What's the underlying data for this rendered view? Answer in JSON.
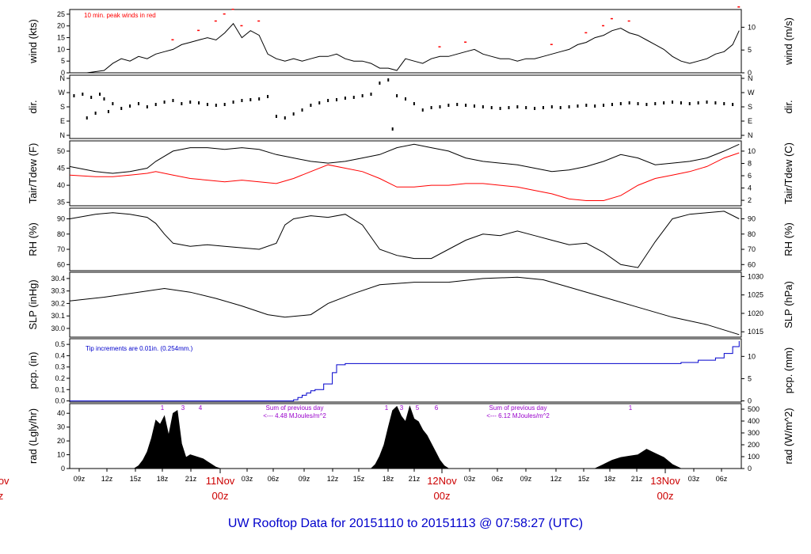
{
  "title": "UW Rooftop Data for 20151110  to  20151113 @ 07:58:27  (UTC)",
  "colors": {
    "black": "#000000",
    "red": "#ff0000",
    "blue": "#0000cc",
    "purple": "#9900cc",
    "daylabel": "#cc0000"
  },
  "time_axis": {
    "ticks": [
      "09z",
      "12z",
      "15z",
      "18z",
      "21z",
      "03z",
      "06z",
      "09z",
      "12z",
      "15z",
      "18z",
      "21z",
      "03z",
      "06z",
      "09z",
      "12z",
      "15z",
      "18z",
      "21z",
      "03z",
      "06z"
    ],
    "day_labels": [
      {
        "date": "11Nov",
        "time": "00z"
      },
      {
        "date": "12Nov",
        "time": "00z"
      },
      {
        "date": "13Nov",
        "time": "00z"
      }
    ],
    "cut_left_date": "Nov",
    "cut_left_time": "z"
  },
  "chart_data": [
    {
      "id": "wind",
      "type": "line",
      "ylabel": "wind (kts)",
      "ylabel_right": "wind (m/s)",
      "ylim": [
        0,
        27
      ],
      "yticks": [
        0,
        5,
        10,
        15,
        20,
        25
      ],
      "yticks_right": [
        0,
        5,
        10
      ],
      "annotation": "10 min. peak winds in red",
      "series": [
        {
          "name": "wind speed",
          "color": "#000000",
          "x": [
            0,
            4,
            8,
            10,
            12,
            14,
            16,
            18,
            20,
            22,
            24,
            25,
            26,
            28,
            30,
            32,
            34,
            36,
            38,
            40,
            42,
            44,
            46,
            48,
            50,
            52,
            54,
            56,
            58,
            60,
            62,
            64,
            66,
            68,
            70,
            72,
            74,
            76,
            78,
            80,
            82,
            84,
            86,
            88,
            90,
            92,
            94,
            96,
            98,
            100,
            102,
            104,
            106,
            108,
            110,
            112,
            114,
            116,
            118,
            120,
            122,
            124,
            126,
            128,
            130,
            132,
            134,
            136,
            138,
            140,
            142,
            144,
            146,
            148,
            150,
            152,
            154,
            155.5
          ],
          "y": [
            0,
            0,
            1,
            4,
            6,
            5,
            7,
            6,
            8,
            9,
            10,
            11,
            12,
            13,
            14,
            15,
            14,
            17,
            21,
            15,
            18,
            16,
            8,
            6,
            5,
            6,
            5,
            6,
            7,
            7,
            8,
            6,
            5,
            5,
            4,
            2,
            2,
            1,
            6,
            5,
            4,
            6,
            7,
            7,
            8,
            9,
            10,
            8,
            7,
            6,
            6,
            5,
            6,
            6,
            7,
            8,
            9,
            10,
            12,
            13,
            15,
            16,
            18,
            19,
            17,
            16,
            14,
            12,
            10,
            7,
            5,
            4,
            5,
            6,
            8,
            9,
            12,
            18
          ]
        },
        {
          "name": "10 min peak",
          "color": "#ff0000",
          "x": [
            24,
            30,
            34,
            36,
            38,
            40,
            44,
            86,
            92,
            112,
            120,
            124,
            126,
            130,
            155.5
          ],
          "y": [
            14,
            18,
            22,
            25,
            27,
            20,
            22,
            11,
            13,
            12,
            17,
            20,
            23,
            22,
            28
          ]
        }
      ]
    },
    {
      "id": "dir",
      "type": "scatter",
      "ylabel": "dir.",
      "ylabel_right": "dir.",
      "yticks_labels": [
        "N",
        "W",
        "S",
        "E",
        "N"
      ],
      "series": [
        {
          "name": "wind direction (deg)",
          "x": [
            1,
            3,
            4,
            5,
            6,
            7,
            8,
            9,
            10,
            12,
            14,
            16,
            18,
            20,
            22,
            24,
            26,
            28,
            30,
            32,
            34,
            36,
            38,
            40,
            42,
            44,
            46,
            48,
            50,
            52,
            54,
            56,
            58,
            60,
            62,
            64,
            66,
            68,
            70,
            72,
            74,
            75,
            76,
            78,
            80,
            82,
            84,
            86,
            88,
            90,
            92,
            94,
            96,
            98,
            100,
            102,
            104,
            106,
            108,
            110,
            112,
            114,
            116,
            118,
            120,
            122,
            124,
            126,
            128,
            130,
            132,
            134,
            136,
            138,
            140,
            142,
            144,
            146,
            148,
            150,
            152,
            154
          ],
          "y": [
            250,
            260,
            110,
            240,
            140,
            260,
            230,
            150,
            200,
            170,
            185,
            200,
            180,
            195,
            210,
            220,
            200,
            210,
            205,
            195,
            190,
            195,
            210,
            220,
            225,
            230,
            245,
            120,
            110,
            135,
            160,
            190,
            205,
            220,
            225,
            235,
            240,
            250,
            260,
            330,
            350,
            40,
            250,
            230,
            200,
            160,
            175,
            180,
            190,
            195,
            190,
            185,
            180,
            175,
            170,
            175,
            180,
            175,
            170,
            175,
            180,
            175,
            180,
            185,
            190,
            185,
            190,
            195,
            200,
            205,
            200,
            195,
            200,
            205,
            210,
            205,
            200,
            205,
            210,
            205,
            200,
            195
          ]
        }
      ]
    },
    {
      "id": "temp",
      "type": "line",
      "ylabel": "Tair/Tdew (F)",
      "ylabel_right": "Tair/Tdew (C)",
      "ylim": [
        34,
        53
      ],
      "yticks": [
        35,
        40,
        45,
        50
      ],
      "yticks_right": [
        2,
        4,
        6,
        8,
        10
      ],
      "series": [
        {
          "name": "Tair",
          "color": "#000000",
          "x": [
            0,
            6,
            10,
            14,
            18,
            20,
            24,
            28,
            32,
            36,
            40,
            44,
            48,
            52,
            56,
            60,
            64,
            68,
            72,
            76,
            80,
            84,
            88,
            92,
            96,
            100,
            104,
            108,
            112,
            116,
            120,
            124,
            128,
            132,
            136,
            140,
            144,
            148,
            152,
            155.5
          ],
          "y": [
            45.5,
            44,
            43.5,
            44,
            45,
            47,
            50,
            51,
            51,
            50.5,
            51,
            50.5,
            49,
            48,
            47,
            46.5,
            47,
            48,
            49,
            51,
            52,
            51,
            50,
            48,
            47,
            46.5,
            46,
            45,
            44,
            44.5,
            45.5,
            47,
            49,
            48,
            46,
            46.5,
            47,
            48,
            50,
            52
          ]
        },
        {
          "name": "Tdew",
          "color": "#ff0000",
          "x": [
            0,
            6,
            10,
            14,
            18,
            20,
            24,
            28,
            32,
            36,
            40,
            44,
            48,
            52,
            56,
            60,
            64,
            68,
            72,
            76,
            80,
            84,
            88,
            92,
            96,
            100,
            104,
            108,
            112,
            116,
            120,
            124,
            128,
            132,
            136,
            140,
            144,
            148,
            152,
            155.5
          ],
          "y": [
            43,
            42.5,
            42.5,
            43,
            43.5,
            44,
            43,
            42,
            41.5,
            41,
            41.5,
            41,
            40.5,
            42,
            44,
            46,
            45,
            44,
            42,
            39.5,
            39.5,
            40,
            40,
            40.5,
            40.5,
            40,
            39.5,
            38.5,
            37.5,
            36,
            35.5,
            35.5,
            37,
            40,
            42,
            43,
            44,
            45.5,
            48,
            49.5
          ]
        }
      ]
    },
    {
      "id": "rh",
      "type": "line",
      "ylabel": "RH (%)",
      "ylabel_right": "RH (%)",
      "ylim": [
        56,
        97
      ],
      "yticks": [
        60,
        70,
        80,
        90
      ],
      "yticks_right": [
        60,
        70,
        80,
        90
      ],
      "series": [
        {
          "name": "RH",
          "color": "#000000",
          "x": [
            0,
            6,
            10,
            14,
            18,
            20,
            22,
            24,
            28,
            32,
            36,
            40,
            44,
            48,
            50,
            52,
            56,
            60,
            64,
            68,
            72,
            76,
            80,
            84,
            88,
            92,
            96,
            100,
            104,
            108,
            112,
            116,
            120,
            124,
            128,
            132,
            136,
            140,
            144,
            148,
            152,
            155.5
          ],
          "y": [
            90,
            93,
            94,
            93,
            91,
            87,
            80,
            74,
            72,
            73,
            72,
            71,
            70,
            74,
            86,
            90,
            92,
            91,
            93,
            86,
            70,
            66,
            64,
            64,
            70,
            76,
            80,
            79,
            82,
            79,
            76,
            73,
            74,
            68,
            60,
            58,
            75,
            90,
            93,
            94,
            95,
            90
          ]
        }
      ]
    },
    {
      "id": "slp",
      "type": "line",
      "ylabel": "SLP (inHg)",
      "ylabel_right": "SLP (hPa)",
      "ylim": [
        29.93,
        30.45
      ],
      "yticks": [
        30.0,
        30.1,
        30.2,
        30.3,
        30.4
      ],
      "yticks_right": [
        1015,
        1020,
        1025,
        1030
      ],
      "series": [
        {
          "name": "SLP",
          "color": "#000000",
          "x": [
            0,
            8,
            16,
            22,
            28,
            34,
            40,
            46,
            50,
            56,
            60,
            66,
            72,
            80,
            88,
            96,
            104,
            110,
            116,
            124,
            132,
            140,
            148,
            155.5
          ],
          "y": [
            30.22,
            30.25,
            30.29,
            30.32,
            30.29,
            30.24,
            30.18,
            30.11,
            30.09,
            30.11,
            30.2,
            30.28,
            30.35,
            30.37,
            30.37,
            30.4,
            30.41,
            30.39,
            30.33,
            30.25,
            30.17,
            30.09,
            30.03,
            29.95
          ]
        }
      ]
    },
    {
      "id": "pcp",
      "type": "line",
      "ylabel": "pcp. (in)",
      "ylabel_right": "pcp. (mm)",
      "ylim": [
        -0.01,
        0.55
      ],
      "yticks": [
        0.0,
        0.1,
        0.2,
        0.3,
        0.4,
        0.5
      ],
      "yticks_right": [
        0,
        5,
        10
      ],
      "annotation": "Tip increments are 0.01in. (0.254mm.)",
      "series": [
        {
          "name": "cumulative precipitation",
          "color": "#0000cc",
          "x": [
            0,
            51,
            52,
            53,
            54,
            55,
            56,
            57,
            59,
            59.5,
            60,
            61,
            62,
            64,
            66,
            70,
            80,
            100,
            120,
            130,
            140,
            142,
            146,
            150,
            152,
            154,
            155.5
          ],
          "y": [
            0,
            0,
            0.01,
            0.03,
            0.05,
            0.07,
            0.09,
            0.1,
            0.15,
            0.15,
            0.15,
            0.25,
            0.32,
            0.33,
            0.33,
            0.33,
            0.33,
            0.33,
            0.33,
            0.33,
            0.33,
            0.34,
            0.36,
            0.38,
            0.42,
            0.48,
            0.53
          ]
        }
      ]
    },
    {
      "id": "rad",
      "type": "area",
      "ylabel": "rad (Lgly/hr)",
      "ylabel_right": "rad (W/m^2)",
      "ylim": [
        0,
        47
      ],
      "yticks": [
        0,
        10,
        20,
        30,
        40
      ],
      "yticks_right": [
        0,
        100,
        200,
        300,
        400,
        500
      ],
      "hour_markers": [
        "1",
        "3",
        "4",
        "1",
        "3",
        "5",
        "6",
        "1"
      ],
      "daily_sums": [
        {
          "line1": "Sum of previous day",
          "line2": "<--- 4.48 MJoules/m^2"
        },
        {
          "line1": "Sum of previous day",
          "line2": "<--- 6.12 MJoules/m^2"
        }
      ],
      "series": [
        {
          "name": "solar radiation",
          "color": "#000000",
          "x": [
            0,
            15,
            16,
            17,
            18,
            19,
            20,
            21,
            22,
            23,
            24,
            25,
            26,
            27,
            28,
            29,
            30,
            31,
            32,
            33,
            34,
            35,
            36,
            70,
            71,
            72,
            73,
            74,
            75,
            76,
            77,
            78,
            79,
            80,
            81,
            82,
            83,
            84,
            85,
            86,
            87,
            88,
            122,
            124,
            126,
            128,
            130,
            132,
            134,
            136,
            138,
            140,
            142,
            155.5
          ],
          "y": [
            0,
            0,
            2,
            6,
            12,
            22,
            35,
            32,
            38,
            24,
            40,
            42,
            18,
            8,
            10,
            9,
            8,
            7,
            5,
            3,
            1,
            0,
            0,
            0,
            3,
            9,
            17,
            30,
            42,
            45,
            38,
            34,
            45,
            36,
            34,
            28,
            24,
            18,
            12,
            6,
            2,
            0,
            0,
            3,
            6,
            8,
            9,
            10,
            14,
            11,
            8,
            3,
            0,
            0
          ]
        }
      ]
    }
  ]
}
